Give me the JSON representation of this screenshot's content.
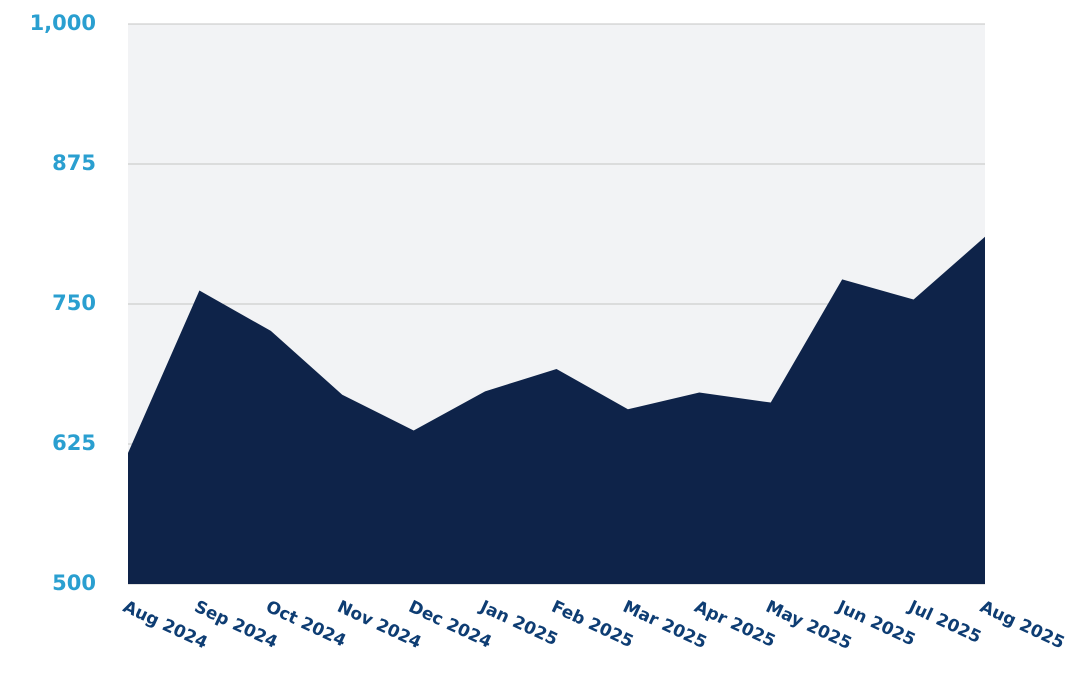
{
  "chart_data": {
    "type": "area",
    "categories": [
      "Aug 2024",
      "Sep 2024",
      "Oct 2024",
      "Nov 2024",
      "Dec 2024",
      "Jan 2025",
      "Feb 2025",
      "Mar 2025",
      "Apr 2025",
      "May 2025",
      "Jun 2025",
      "Jul 2025",
      "Aug 2025"
    ],
    "values": [
      617,
      762,
      726,
      669,
      637,
      672,
      692,
      656,
      671,
      662,
      772,
      754,
      810
    ],
    "color": "#0e2349",
    "ylim": [
      500,
      1000
    ],
    "yticks": [
      500,
      625,
      750,
      875,
      {
        "value": 1000,
        "label": "1,000"
      }
    ],
    "grid": true
  }
}
